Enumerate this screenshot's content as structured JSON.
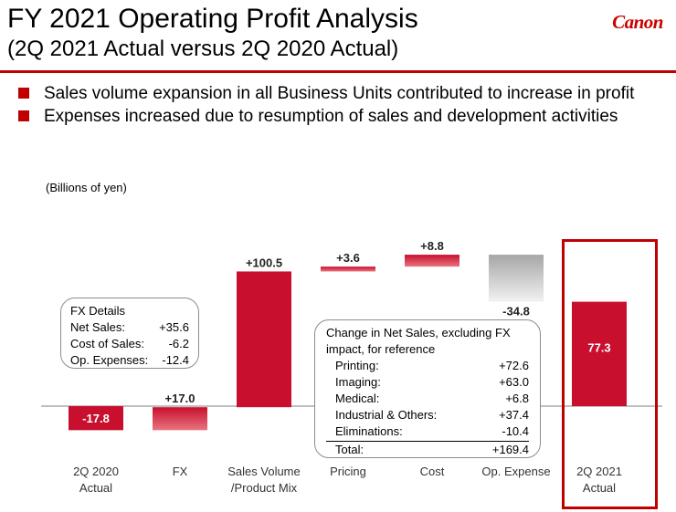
{
  "header": {
    "title": "FY 2021 Operating Profit Analysis",
    "subtitle": "(2Q 2021 Actual versus 2Q 2020 Actual)",
    "logo_text": "Canon"
  },
  "bullets": [
    "Sales volume expansion in all Business Units contributed to increase in profit",
    "Expenses increased due to resumption of sales and development activities"
  ],
  "unit_label": "(Billions of yen)",
  "fx_details": {
    "title": "FX Details",
    "rows": [
      {
        "label": "Net Sales:",
        "value": "+35.6"
      },
      {
        "label": "Cost of Sales:",
        "value": "-6.2"
      },
      {
        "label": "Op. Expenses:",
        "value": "-12.4"
      }
    ]
  },
  "net_sales_change": {
    "title": "Change in Net Sales, excluding FX impact, for reference",
    "rows": [
      {
        "label": "Printing:",
        "value": "+72.6"
      },
      {
        "label": "Imaging:",
        "value": "+63.0"
      },
      {
        "label": "Medical:",
        "value": "+6.8"
      },
      {
        "label": "Industrial & Others:",
        "value": "+37.4"
      },
      {
        "label": "Eliminations:",
        "value": "-10.4"
      }
    ],
    "total": {
      "label": "Total:",
      "value": "+169.4"
    }
  },
  "colors": {
    "accent": "#c00000",
    "bar_red": "#c8102e",
    "bar_red_light": "#e8737e",
    "bar_gray": "#a6a6a6",
    "callout_border": "#8c8c8c"
  },
  "chart_data": {
    "type": "bar",
    "subtype": "waterfall",
    "categories": [
      "2Q 2020\nActual",
      "FX",
      "Sales Volume\n/Product Mix",
      "Pricing",
      "Cost",
      "Op. Expense",
      "2Q 2021\nActual"
    ],
    "values": [
      -17.8,
      17.0,
      100.5,
      3.6,
      8.8,
      -34.8,
      77.3
    ],
    "value_labels": [
      "-17.8",
      "+17.0",
      "+100.5",
      "+3.6",
      "+8.8",
      "-34.8",
      "77.3"
    ],
    "kinds": [
      "total",
      "delta",
      "delta",
      "delta",
      "delta",
      "delta",
      "total"
    ],
    "highlighted_category": "2Q 2021\nActual",
    "grid": false,
    "legend": "none"
  }
}
